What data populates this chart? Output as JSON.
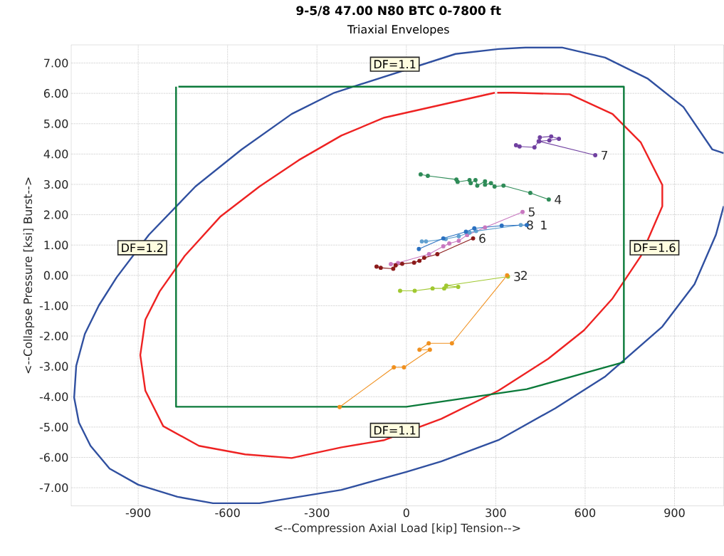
{
  "chart_data": {
    "type": "line",
    "title": "9-5/8 47.00 N80 BTC 0-7800 ft",
    "subtitle": "Triaxial Envelopes",
    "xlabel": "<--Compression      Axial Load [kip]      Tension-->",
    "ylabel": "<--Collapse      Pressure [ksi]      Burst-->",
    "xlim": [
      -1125,
      1065
    ],
    "ylim": [
      -7.6,
      7.6
    ],
    "xticks": [
      -900,
      -600,
      -300,
      0,
      300,
      600,
      900
    ],
    "yticks": [
      {
        "value": -7,
        "label": "-7.00"
      },
      {
        "value": -6,
        "label": "-6.00"
      },
      {
        "value": -5,
        "label": "-5.00"
      },
      {
        "value": -4,
        "label": "-4.00"
      },
      {
        "value": -3,
        "label": "-3.00"
      },
      {
        "value": -2,
        "label": "-2.00"
      },
      {
        "value": -1,
        "label": "-1.00"
      },
      {
        "value": 0,
        "label": "0.00"
      },
      {
        "value": 1,
        "label": "1.00"
      },
      {
        "value": 2,
        "label": "2.00"
      },
      {
        "value": 3,
        "label": "3.00"
      },
      {
        "value": 4,
        "label": "4.00"
      },
      {
        "value": 5,
        "label": "5.00"
      },
      {
        "value": 6,
        "label": "6.00"
      },
      {
        "value": 7,
        "label": "7.00"
      }
    ],
    "grid": true,
    "legend": false,
    "annotations": [
      "DF=1.1",
      "DF=1.2",
      "DF=1.6",
      "DF=1.1"
    ],
    "series": [
      {
        "color": "#3050a0",
        "marker": "none",
        "x": [
          1065,
          1027,
          930,
          811,
          667,
          524,
          400,
          309,
          165,
          -242,
          -385,
          -553,
          -708,
          -864,
          -972,
          -1032,
          -1079,
          -1108,
          -1115,
          -1099,
          -1060,
          -996,
          -900,
          -768,
          -649,
          -493,
          -218,
          0,
          117,
          309,
          500,
          668,
          859,
          967,
          1039,
          1065,
          null,
          1065
        ],
        "values": [
          4.03,
          4.15,
          5.55,
          6.48,
          7.18,
          7.51,
          7.51,
          7.46,
          7.3,
          6.02,
          5.32,
          4.15,
          2.93,
          1.34,
          -0.06,
          -0.99,
          -1.93,
          -2.98,
          -4.03,
          -4.85,
          -5.62,
          -6.37,
          -6.9,
          -7.3,
          -7.51,
          -7.51,
          -7.07,
          -6.48,
          -6.13,
          -5.43,
          -4.38,
          -3.33,
          -1.69,
          -0.29,
          1.34,
          2.28,
          null,
          4.03
        ]
      },
      {
        "color": "#ee2222",
        "marker": "none",
        "x": [
          297,
          -74,
          -218,
          -361,
          -493,
          -625,
          -744,
          -828,
          -876,
          -893,
          -876,
          -816,
          -696,
          -541,
          -385,
          -218,
          -74,
          117,
          309,
          476,
          596,
          692,
          787,
          859,
          859,
          787,
          692,
          548,
          357,
          305
        ],
        "values": [
          6.02,
          5.2,
          4.61,
          3.8,
          2.93,
          1.93,
          0.64,
          -0.53,
          -1.46,
          -2.63,
          -3.8,
          -4.97,
          -5.62,
          -5.9,
          -6.02,
          -5.67,
          -5.43,
          -4.73,
          -3.8,
          -2.75,
          -1.81,
          -0.76,
          0.64,
          2.28,
          2.98,
          4.38,
          5.32,
          5.97,
          6.02,
          6.02
        ]
      },
      {
        "color": "#0b7a3a",
        "marker": "none",
        "x": [
          -765,
          730,
          730,
          404,
          0,
          -773,
          -773
        ],
        "values": [
          6.22,
          6.22,
          -2.86,
          -3.75,
          -4.33,
          -4.33,
          6.22
        ]
      },
      {
        "name": "7",
        "color": "#7040a0",
        "marker": "circle",
        "x": [
          368,
          380,
          430,
          444,
          448,
          486,
          512,
          480,
          446,
          634
        ],
        "values": [
          4.29,
          4.25,
          4.22,
          4.42,
          4.55,
          4.58,
          4.5,
          4.45,
          4.42,
          3.96
        ]
      },
      {
        "name": "4",
        "color": "#2e8b57",
        "marker": "circle",
        "x": [
          48,
          72,
          168,
          172,
          212,
          216,
          232,
          238,
          264,
          264,
          284,
          296,
          326,
          416,
          478
        ],
        "values": [
          3.33,
          3.28,
          3.16,
          3.08,
          3.14,
          3.04,
          3.14,
          2.96,
          3.1,
          2.99,
          3.04,
          2.93,
          2.96,
          2.72,
          2.5
        ]
      },
      {
        "name": "5",
        "color": "#c878c0",
        "marker": "circle",
        "x": [
          -52,
          -28,
          76,
          124,
          144,
          176,
          204,
          264,
          390
        ],
        "values": [
          0.37,
          0.41,
          0.7,
          0.96,
          1.05,
          1.14,
          1.33,
          1.58,
          2.09
        ]
      },
      {
        "name": "8",
        "color": "#60a0d0",
        "marker": "circle",
        "x": [
          52,
          66,
          132,
          176,
          212,
          234,
          384
        ],
        "values": [
          1.12,
          1.12,
          1.2,
          1.29,
          1.41,
          1.46,
          1.66
        ]
      },
      {
        "name": "1",
        "color": "#2a70c0",
        "marker": "circle",
        "x": [
          42,
          124,
          200,
          228,
          320,
          404
        ],
        "values": [
          0.87,
          1.22,
          1.44,
          1.55,
          1.64,
          1.66
        ]
      },
      {
        "name": "6",
        "color": "#8b1a1a",
        "marker": "circle",
        "x": [
          -100,
          -86,
          -44,
          -36,
          -14,
          26,
          44,
          60,
          104,
          224
        ],
        "values": [
          0.29,
          0.25,
          0.22,
          0.33,
          0.38,
          0.42,
          0.48,
          0.58,
          0.7,
          1.22
        ]
      },
      {
        "name": "3",
        "color": "#a0c830",
        "marker": "circle",
        "x": [
          -21,
          28,
          88,
          127,
          174,
          134,
          341
        ],
        "values": [
          -0.51,
          -0.51,
          -0.43,
          -0.43,
          -0.38,
          -0.34,
          -0.04
        ]
      },
      {
        "name": "2",
        "color": "#f0901e",
        "marker": "circle",
        "x": [
          -224,
          -42,
          -8,
          79,
          44,
          75,
          153,
          338
        ],
        "values": [
          -4.34,
          -3.03,
          -3.03,
          -2.45,
          -2.45,
          -2.24,
          -2.24,
          0.0
        ]
      }
    ]
  }
}
